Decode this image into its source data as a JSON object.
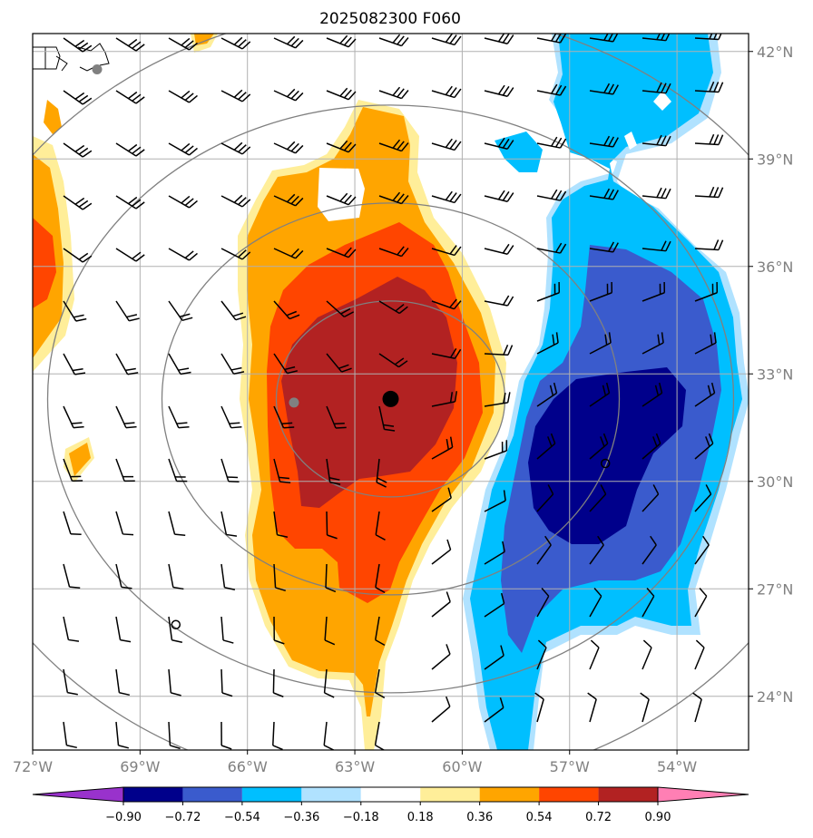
{
  "chart_data": {
    "type": "heatmap",
    "title": "2025082300 F060",
    "x_ticks": [
      "72°W",
      "69°W",
      "66°W",
      "63°W",
      "60°W",
      "57°W",
      "54°W"
    ],
    "y_ticks": [
      "42°N",
      "39°N",
      "36°N",
      "33°N",
      "30°N",
      "27°N",
      "24°N"
    ],
    "x_tick_values": [
      -72,
      -69,
      -66,
      -63,
      -60,
      -57,
      -54
    ],
    "y_tick_values": [
      42,
      39,
      36,
      33,
      30,
      27,
      24
    ],
    "xlim": [
      -72,
      -52
    ],
    "ylim": [
      22.5,
      42.5
    ],
    "grid": true,
    "colorbar": {
      "orientation": "horizontal",
      "levels": [
        -0.9,
        -0.72,
        -0.54,
        -0.36,
        -0.18,
        0.18,
        0.36,
        0.54,
        0.72,
        0.9
      ],
      "labels": [
        "−0.90",
        "−0.72",
        "−0.54",
        "−0.36",
        "−0.18",
        "0.18",
        "0.36",
        "0.54",
        "0.72",
        "0.90"
      ],
      "colors": [
        "#9932cc",
        "#00008b",
        "#3a5bcd",
        "#00bfff",
        "#b0e2ff",
        "#ffffff",
        "#ffee99",
        "#ffa500",
        "#ff4500",
        "#b22222",
        "#ff7fb4"
      ],
      "extend": "both"
    },
    "centers": [
      {
        "lon": -62.0,
        "lat": 32.3,
        "marker": "large-black-dot"
      },
      {
        "lon": -64.7,
        "lat": 32.2,
        "marker": "gray-dot"
      },
      {
        "lon": -70.2,
        "lat": 41.5,
        "marker": "gray-dot"
      },
      {
        "lon": -68.0,
        "lat": 26.0,
        "marker": "open-circle"
      },
      {
        "lon": -56.0,
        "lat": 30.5,
        "marker": "open-circle"
      }
    ],
    "range_rings_around": {
      "lon": -62.0,
      "lat": 32.3,
      "count": 4
    },
    "positive_anomaly": {
      "center_lon": -62.5,
      "center_lat": 32.0,
      "peak_level": 0.72
    },
    "negative_anomaly": {
      "center_lon": -56.0,
      "center_lat": 31.0,
      "peak_level": -0.72
    },
    "wind_barbs": "regular grid, roughly every 1.5° lon × 1.5° lat"
  }
}
